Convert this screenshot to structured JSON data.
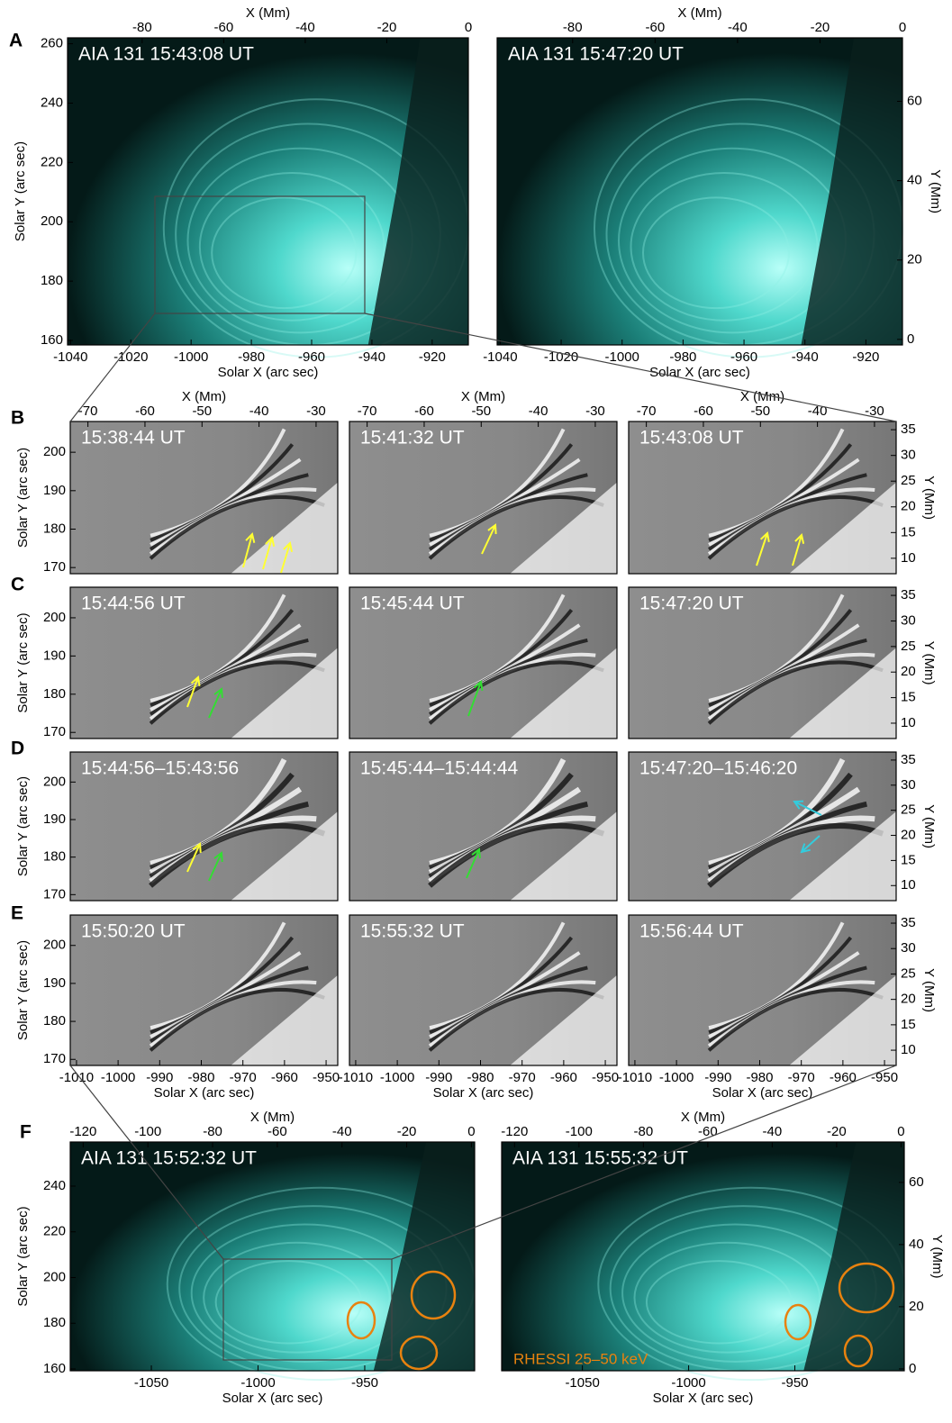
{
  "panels": [
    {
      "letter": "A",
      "images": [
        "AIA 131 15:43:08 UT",
        "AIA 131 15:47:20 UT"
      ],
      "axes": {
        "x_mm": {
          "title": "X (Mm)",
          "lim": [
            -98.3,
            0
          ],
          "ticks": [
            -80,
            -60,
            -40,
            -20,
            0
          ]
        },
        "y_arcsec": {
          "title": "Solar Y (arc sec)",
          "lim": [
            158.5,
            262
          ],
          "ticks": [
            160,
            180,
            200,
            220,
            240,
            260
          ]
        },
        "x_arcsec": {
          "title": "Solar X (arc sec)",
          "lim": [
            -1041,
            -908
          ],
          "ticks": [
            -1040,
            -1020,
            -1000,
            -980,
            -960,
            -940,
            -920
          ]
        },
        "y_mm": {
          "title": "Y (Mm)",
          "lim": [
            -1.4,
            76
          ],
          "ticks": [
            0,
            20,
            40,
            60
          ]
        }
      }
    },
    {
      "letter": "B",
      "images": [
        "15:38:44 UT",
        "15:41:32 UT",
        "15:43:08 UT"
      ],
      "axes": {
        "x_mm": {
          "title": "X (Mm)",
          "lim": [
            -73.1,
            -26.2
          ],
          "ticks": [
            -70,
            -60,
            -50,
            -40,
            -30
          ]
        },
        "y_arcsec": {
          "title": "Solar Y (arc sec)",
          "lim": [
            168.4,
            208
          ],
          "ticks": [
            170,
            180,
            190,
            200
          ]
        },
        "y_mm": {
          "title": "Y (Mm)",
          "lim": [
            7,
            36.6
          ],
          "ticks": [
            10,
            15,
            20,
            25,
            30,
            35
          ]
        }
      }
    },
    {
      "letter": "C",
      "images": [
        "15:44:56 UT",
        "15:45:44 UT",
        "15:47:20 UT"
      ],
      "axes": {
        "y_arcsec": {
          "title": "Solar Y (arc sec)",
          "lim": [
            168.4,
            208
          ],
          "ticks": [
            170,
            180,
            190,
            200
          ]
        },
        "y_mm": {
          "title": "Y (Mm)",
          "lim": [
            7,
            36.6
          ],
          "ticks": [
            10,
            15,
            20,
            25,
            30,
            35
          ]
        }
      }
    },
    {
      "letter": "D",
      "images": [
        "15:44:56–15:43:56",
        "15:45:44–15:44:44",
        "15:47:20–15:46:20"
      ],
      "axes": {
        "y_arcsec": {
          "title": "Solar Y (arc sec)",
          "lim": [
            168.4,
            208
          ],
          "ticks": [
            170,
            180,
            190,
            200
          ]
        },
        "y_mm": {
          "title": "Y (Mm)",
          "lim": [
            7,
            36.6
          ],
          "ticks": [
            10,
            15,
            20,
            25,
            30,
            35
          ]
        }
      }
    },
    {
      "letter": "E",
      "images": [
        "15:50:20 UT",
        "15:55:32 UT",
        "15:56:44 UT"
      ],
      "axes": {
        "y_arcsec": {
          "title": "Solar Y (arc sec)",
          "lim": [
            168.4,
            208
          ],
          "ticks": [
            170,
            180,
            190,
            200
          ]
        },
        "x_arcsec": {
          "title": "Solar X (arc sec)",
          "lim": [
            -1011.5,
            -947.2
          ],
          "ticks": [
            -1010,
            -1000,
            -990,
            -980,
            -970,
            -960,
            -950
          ]
        },
        "y_mm": {
          "title": "Y (Mm)",
          "lim": [
            7,
            36.6
          ],
          "ticks": [
            10,
            15,
            20,
            25,
            30,
            35
          ]
        }
      }
    },
    {
      "letter": "F",
      "images": [
        "AIA 131 15:52:32 UT",
        "AIA 131 15:55:32 UT"
      ],
      "annotation": "RHESSI 25–50 keV",
      "axes": {
        "x_mm": {
          "title": "X (Mm)",
          "lim": [
            -124,
            1
          ],
          "ticks": [
            -120,
            -100,
            -80,
            -60,
            -40,
            -20,
            0
          ]
        },
        "y_arcsec": {
          "title": "Solar Y (arc sec)",
          "lim": [
            159.2,
            259.3
          ],
          "ticks": [
            160,
            180,
            200,
            220,
            240
          ]
        },
        "x_arcsec": {
          "title": "Solar X (arc sec)",
          "lim": [
            -1088,
            -898.5
          ],
          "ticks": [
            -1050,
            -1000,
            -950
          ]
        },
        "y_mm": {
          "title": "Y (Mm)",
          "lim": [
            -0.6,
            73
          ],
          "ticks": [
            0,
            20,
            40,
            60
          ]
        }
      }
    }
  ]
}
